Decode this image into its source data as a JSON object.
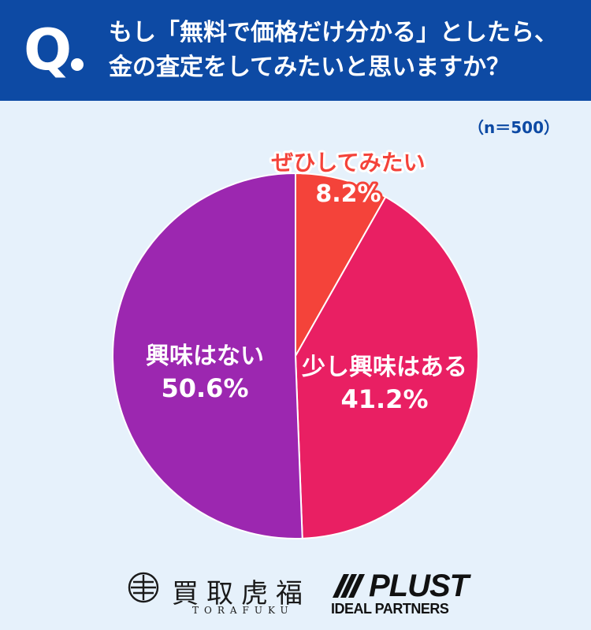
{
  "question": {
    "mark": "Q",
    "line1": "もし「無料で価格だけ分かる」としたら、",
    "line2": "金の査定をしてみたいと思いますか？"
  },
  "sample_size": "（n＝500）",
  "chart_data": {
    "type": "pie",
    "title": "",
    "slices": [
      {
        "name": "ぜひしてみたい",
        "value": 8.2,
        "label": "8.2%",
        "color": "#f4433a"
      },
      {
        "name": "少し興味はある",
        "value": 41.2,
        "label": "41.2%",
        "color": "#e91f63"
      },
      {
        "name": "興味はない",
        "value": 50.6,
        "label": "50.6%",
        "color": "#9c27b0"
      }
    ],
    "start": "top",
    "direction": "clockwise",
    "legend": "none"
  },
  "footer": {
    "torafuku_name": "買取虎福",
    "torafuku_roman": "TORAFUKU",
    "plust_name": "PLUST",
    "plust_sub": "IDEAL PARTNERS"
  },
  "colors": {
    "header_bg": "#0d4aa4",
    "page_bg": "#e6f1fb"
  }
}
